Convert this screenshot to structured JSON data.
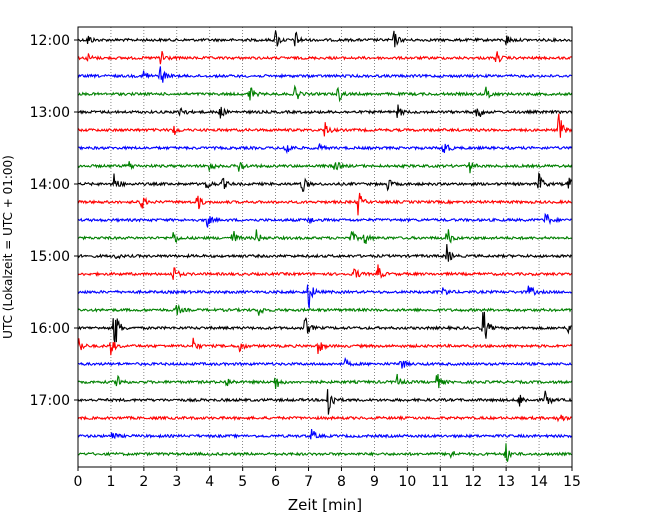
{
  "chart_data": {
    "type": "line",
    "title": "",
    "xlabel": "Zeit  [min]",
    "ylabel": "UTC (Lokalzeit = UTC + 01:00)",
    "xlim": [
      0,
      15
    ],
    "x_ticks": [
      "0",
      "1",
      "2",
      "3",
      "4",
      "5",
      "6",
      "7",
      "8",
      "9",
      "10",
      "11",
      "12",
      "13",
      "14",
      "15"
    ],
    "y_ticks": [
      "12:00",
      "13:00",
      "14:00",
      "15:00",
      "16:00",
      "17:00"
    ],
    "vertical_gridlines": "dotted, every minute",
    "trace_color_cycle": [
      "#000000",
      "#ff0000",
      "#0000ff",
      "#008000"
    ],
    "traces": [
      {
        "start": "12:00",
        "events": [
          [
            0.3,
            0.4
          ],
          [
            6.0,
            0.7
          ],
          [
            6.6,
            0.6
          ],
          [
            9.6,
            0.6
          ],
          [
            13.0,
            0.4
          ]
        ]
      },
      {
        "start": "12:15",
        "events": [
          [
            0.3,
            0.3
          ],
          [
            2.5,
            1.0
          ],
          [
            12.7,
            0.5
          ]
        ]
      },
      {
        "start": "12:30",
        "events": [
          [
            2.0,
            0.5
          ],
          [
            2.5,
            0.8
          ]
        ]
      },
      {
        "start": "12:45",
        "events": [
          [
            5.2,
            0.8
          ],
          [
            6.6,
            0.6
          ],
          [
            7.9,
            0.6
          ],
          [
            12.4,
            0.6
          ]
        ]
      },
      {
        "start": "13:00",
        "events": [
          [
            3.1,
            0.6
          ],
          [
            4.3,
            0.5
          ],
          [
            9.7,
            0.5
          ],
          [
            12.1,
            0.9
          ]
        ]
      },
      {
        "start": "13:15",
        "events": [
          [
            2.9,
            0.4
          ],
          [
            7.5,
            0.6
          ],
          [
            14.6,
            1.2
          ]
        ]
      },
      {
        "start": "13:30",
        "events": [
          [
            6.3,
            0.8
          ],
          [
            7.3,
            0.3
          ],
          [
            11.1,
            0.8
          ]
        ]
      },
      {
        "start": "13:45",
        "events": [
          [
            1.5,
            0.5
          ],
          [
            4.0,
            0.4
          ],
          [
            4.9,
            0.5
          ],
          [
            7.8,
            0.5
          ],
          [
            11.9,
            0.4
          ]
        ]
      },
      {
        "start": "14:00",
        "events": [
          [
            1.1,
            0.9
          ],
          [
            3.9,
            0.5
          ],
          [
            4.4,
            0.4
          ],
          [
            6.8,
            0.7
          ],
          [
            9.4,
            0.4
          ],
          [
            14.0,
            0.8
          ],
          [
            14.9,
            0.5
          ]
        ]
      },
      {
        "start": "14:15",
        "events": [
          [
            1.9,
            0.7
          ],
          [
            3.6,
            0.8
          ],
          [
            8.5,
            0.9
          ]
        ]
      },
      {
        "start": "14:30",
        "events": [
          [
            3.9,
            0.6
          ],
          [
            7.0,
            0.3
          ],
          [
            14.2,
            0.6
          ]
        ]
      },
      {
        "start": "14:45",
        "events": [
          [
            2.9,
            0.5
          ],
          [
            4.7,
            0.6
          ],
          [
            5.4,
            0.6
          ],
          [
            8.3,
            0.5
          ],
          [
            8.7,
            0.5
          ],
          [
            11.2,
            0.8
          ]
        ]
      },
      {
        "start": "15:00",
        "events": [
          [
            1.1,
            0.3
          ],
          [
            11.2,
            0.7
          ]
        ]
      },
      {
        "start": "15:15",
        "events": [
          [
            2.9,
            0.6
          ],
          [
            8.4,
            0.5
          ],
          [
            9.1,
            0.6
          ]
        ]
      },
      {
        "start": "15:30",
        "events": [
          [
            7.0,
            1.2
          ],
          [
            11.1,
            0.4
          ],
          [
            13.7,
            0.6
          ]
        ]
      },
      {
        "start": "15:45",
        "events": [
          [
            3.0,
            0.4
          ],
          [
            5.5,
            0.4
          ]
        ]
      },
      {
        "start": "16:00",
        "events": [
          [
            1.1,
            2.0
          ],
          [
            6.9,
            0.8
          ],
          [
            12.3,
            1.6
          ],
          [
            14.9,
            0.4
          ]
        ]
      },
      {
        "start": "16:15",
        "events": [
          [
            0.0,
            0.8
          ],
          [
            1.0,
            0.6
          ],
          [
            3.5,
            0.5
          ],
          [
            4.9,
            0.5
          ],
          [
            7.3,
            0.6
          ]
        ]
      },
      {
        "start": "16:30",
        "events": [
          [
            8.1,
            0.3
          ],
          [
            9.8,
            0.5
          ]
        ]
      },
      {
        "start": "16:45",
        "events": [
          [
            1.2,
            0.6
          ],
          [
            4.5,
            0.4
          ],
          [
            6.0,
            0.6
          ],
          [
            9.7,
            0.5
          ],
          [
            10.9,
            0.6
          ]
        ]
      },
      {
        "start": "17:00",
        "events": [
          [
            7.6,
            1.6
          ],
          [
            13.4,
            0.5
          ],
          [
            14.2,
            0.7
          ]
        ]
      },
      {
        "start": "17:15",
        "events": [
          [
            14.6,
            0.5
          ]
        ]
      },
      {
        "start": "17:30",
        "events": [
          [
            1.0,
            0.5
          ],
          [
            7.1,
            0.5
          ]
        ]
      },
      {
        "start": "17:45",
        "events": [
          [
            11.3,
            0.4
          ],
          [
            13.0,
            0.7
          ]
        ]
      }
    ]
  }
}
